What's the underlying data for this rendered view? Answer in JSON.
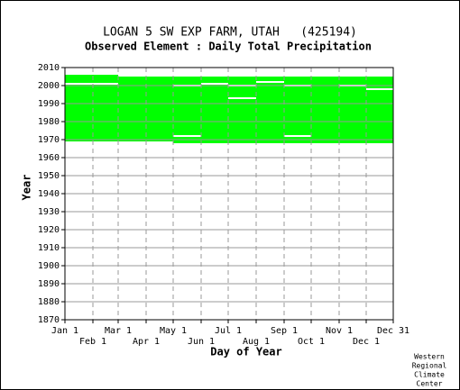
{
  "chart_data": {
    "type": "availability",
    "title": "LOGAN 5 SW EXP FARM, UTAH   (425194)",
    "subtitle": "Observed Element : Daily Total Precipitation",
    "xlabel": "Day of Year",
    "ylabel": "Year",
    "credit": [
      "Western",
      "Regional",
      "Climate",
      "Center"
    ],
    "color": "#00ff00",
    "grid": true,
    "xlim": [
      1,
      365
    ],
    "ylim": [
      1870,
      2010
    ],
    "xticks": [
      {
        "value": 1,
        "label": "Jan 1"
      },
      {
        "value": 32,
        "label": "Feb 1"
      },
      {
        "value": 60,
        "label": "Mar 1"
      },
      {
        "value": 91,
        "label": "Apr 1"
      },
      {
        "value": 121,
        "label": "May 1"
      },
      {
        "value": 152,
        "label": "Jun 1"
      },
      {
        "value": 182,
        "label": "Jul 1"
      },
      {
        "value": 213,
        "label": "Aug 1"
      },
      {
        "value": 244,
        "label": "Sep 1"
      },
      {
        "value": 274,
        "label": "Oct 1"
      },
      {
        "value": 305,
        "label": "Nov 1"
      },
      {
        "value": 335,
        "label": "Dec 1"
      },
      {
        "value": 365,
        "label": "Dec 31"
      }
    ],
    "yticks": [
      1870,
      1880,
      1890,
      1900,
      1910,
      1920,
      1930,
      1940,
      1950,
      1960,
      1970,
      1980,
      1990,
      2000,
      2010
    ],
    "blocks": [
      {
        "x": [
          1,
          60
        ],
        "y": [
          1969,
          2006
        ]
      },
      {
        "x": [
          60,
          121
        ],
        "y": [
          1969,
          2005
        ]
      },
      {
        "x": [
          121,
          365
        ],
        "y": [
          1968,
          2005
        ]
      }
    ],
    "gaps": [
      {
        "x": [
          1,
          60
        ],
        "y": 2001
      },
      {
        "x": [
          121,
          152
        ],
        "y": 2000
      },
      {
        "x": [
          152,
          182
        ],
        "y": 2001
      },
      {
        "x": [
          182,
          213
        ],
        "y": 2000
      },
      {
        "x": [
          182,
          213
        ],
        "y": 1993
      },
      {
        "x": [
          213,
          244
        ],
        "y": 2002
      },
      {
        "x": [
          244,
          274
        ],
        "y": 2000
      },
      {
        "x": [
          121,
          152
        ],
        "y": 1972
      },
      {
        "x": [
          244,
          274
        ],
        "y": 1972
      },
      {
        "x": [
          305,
          335
        ],
        "y": 2000
      },
      {
        "x": [
          335,
          365
        ],
        "y": 1998
      }
    ]
  }
}
